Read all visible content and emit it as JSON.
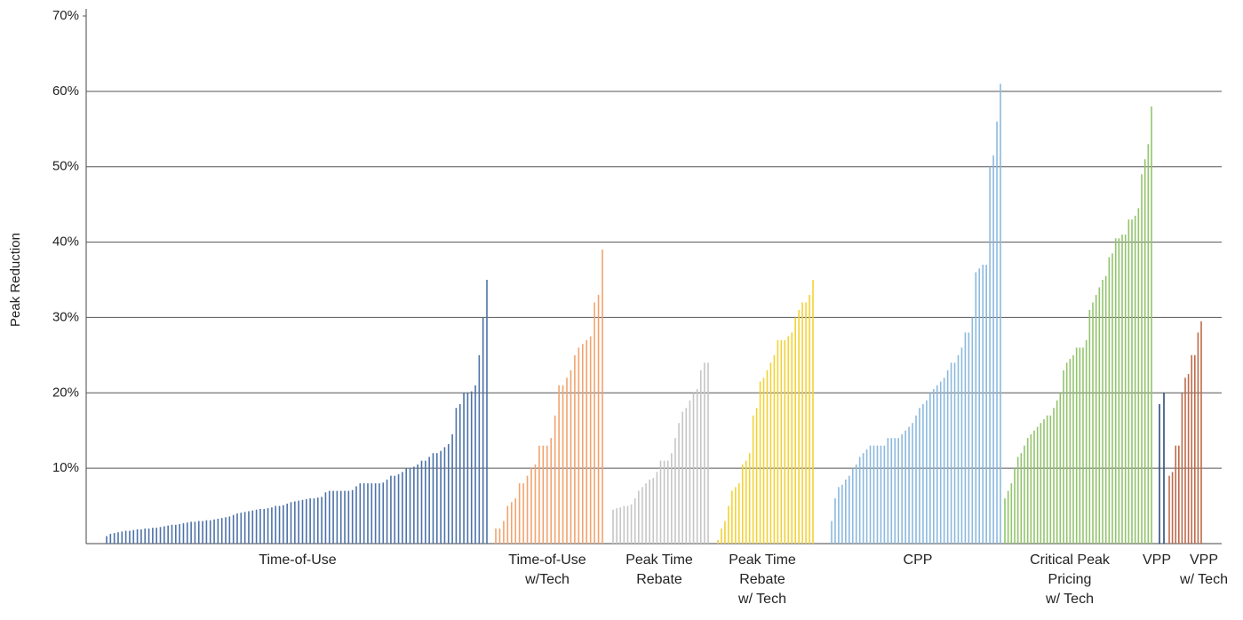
{
  "chart_data": {
    "type": "bar",
    "y_label": "Peak Reduction",
    "ylim": [
      0,
      70
    ],
    "yticks": [
      {
        "value": 10,
        "label": "10%"
      },
      {
        "value": 20,
        "label": "20%"
      },
      {
        "value": 30,
        "label": "30%"
      },
      {
        "value": 40,
        "label": "40%"
      },
      {
        "value": 50,
        "label": "50%"
      },
      {
        "value": 60,
        "label": "60%"
      },
      {
        "value": 70,
        "label": "70%"
      }
    ],
    "grid": true,
    "series": [
      {
        "name": "Time-of-Use",
        "color": "#4d72a8",
        "values": [
          1.0,
          1.3,
          1.4,
          1.5,
          1.6,
          1.7,
          1.7,
          1.8,
          1.9,
          1.9,
          2.0,
          2.0,
          2.1,
          2.1,
          2.2,
          2.3,
          2.4,
          2.5,
          2.5,
          2.6,
          2.7,
          2.8,
          2.9,
          2.9,
          3.0,
          3.0,
          3.1,
          3.1,
          3.2,
          3.3,
          3.4,
          3.5,
          3.6,
          3.8,
          4.0,
          4.1,
          4.2,
          4.3,
          4.4,
          4.5,
          4.6,
          4.6,
          4.7,
          4.8,
          5.0,
          5.0,
          5.1,
          5.3,
          5.5,
          5.6,
          5.7,
          5.8,
          5.9,
          6.0,
          6.0,
          6.1,
          6.2,
          6.8,
          7.0,
          7.0,
          7.0,
          7.0,
          7.0,
          7.0,
          7.1,
          7.6,
          8.0,
          8.0,
          8.0,
          8.0,
          8.0,
          8.0,
          8.1,
          8.5,
          9.0,
          9.0,
          9.2,
          9.5,
          10.0,
          10.0,
          10.2,
          10.5,
          11.0,
          11.0,
          11.5,
          12.0,
          12.0,
          12.3,
          12.8,
          13.2,
          14.5,
          18.0,
          18.5,
          20.0,
          20.0,
          20.2,
          21.0,
          25.0,
          30.0,
          35.0
        ]
      },
      {
        "name": "Time-of-Use\nw/Tech",
        "color": "#f2a36e",
        "values": [
          2,
          2,
          3,
          5,
          5.5,
          6,
          8,
          8,
          9,
          10,
          10.5,
          13,
          13,
          13,
          14,
          17,
          21,
          21,
          22,
          23,
          25,
          26,
          26.5,
          27,
          27.5,
          32,
          33,
          39
        ]
      },
      {
        "name": "Peak Time\nRebate",
        "color": "#c6c6c6",
        "values": [
          4.5,
          4.7,
          4.8,
          5,
          5,
          5.2,
          6,
          7,
          7.5,
          8,
          8.5,
          8.7,
          9.5,
          11,
          11,
          11,
          12,
          14,
          16,
          17.5,
          18,
          19,
          20,
          20.5,
          23,
          24,
          24
        ]
      },
      {
        "name": "Peak Time\nRebate\nw/ Tech",
        "color": "#f3d234",
        "values": [
          0.5,
          2,
          3,
          5,
          7,
          7.5,
          8,
          10.5,
          11,
          12,
          17,
          18,
          21.5,
          22,
          23,
          24,
          25,
          27,
          27,
          27,
          27.5,
          28,
          30,
          31,
          32,
          32,
          33,
          35
        ]
      },
      {
        "name": "CPP",
        "color": "#8cb9de",
        "values": [
          3,
          6,
          7.5,
          7.8,
          8.5,
          9,
          10,
          10.5,
          11.5,
          12,
          12.5,
          13,
          13,
          13,
          13,
          13,
          14,
          14,
          14,
          14,
          14.5,
          15,
          15.5,
          16,
          17,
          18,
          18.5,
          19,
          20,
          20.5,
          21,
          21.5,
          22,
          23,
          24,
          24,
          25,
          26,
          28,
          28,
          30,
          36,
          36.5,
          37,
          37,
          50,
          51.5,
          56,
          61
        ]
      },
      {
        "name": "Critical Peak\nPricing\nw/ Tech",
        "color": "#93c46c",
        "values": [
          6,
          7,
          8,
          10,
          11.5,
          12,
          13,
          14,
          14.5,
          15,
          15.5,
          16,
          16.5,
          17,
          17,
          18,
          19,
          20,
          23,
          24,
          24.5,
          25,
          26,
          26,
          26,
          27,
          31,
          32,
          33,
          34,
          35,
          35.5,
          38,
          38.5,
          40.5,
          40.5,
          41,
          41,
          43,
          43,
          43.5,
          44.5,
          49,
          51,
          53,
          58
        ]
      },
      {
        "name": "VPP",
        "color": "#2f4d7c",
        "values": [
          18.5,
          20
        ]
      },
      {
        "name": "VPP\nw/ Tech",
        "color": "#bf6a4b",
        "values": [
          9,
          9.5,
          13,
          13,
          20,
          22,
          22.5,
          25,
          25,
          28,
          29.5
        ]
      }
    ]
  }
}
